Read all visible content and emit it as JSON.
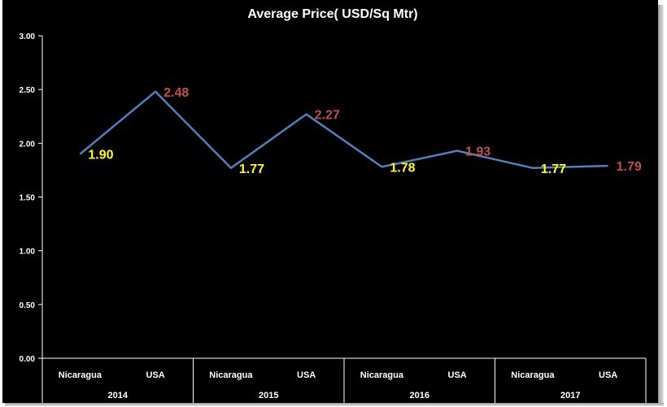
{
  "chart_data": {
    "type": "line",
    "title": "Average Price( USD/Sq Mtr)",
    "categories": [
      {
        "label": "Nicaragua",
        "year": "2014",
        "value": 1.9,
        "value_label": "1.90",
        "label_color": "#ffff00"
      },
      {
        "label": "USA",
        "year": "2014",
        "value": 2.48,
        "value_label": "2.48",
        "label_color": "#c0504d"
      },
      {
        "label": "Nicaragua",
        "year": "2015",
        "value": 1.77,
        "value_label": "1.77",
        "label_color": "#ffff00"
      },
      {
        "label": "USA",
        "year": "2015",
        "value": 2.27,
        "value_label": "2.27",
        "label_color": "#c0504d"
      },
      {
        "label": "Nicaragua",
        "year": "2016",
        "value": 1.78,
        "value_label": "1.78",
        "label_color": "#ffff00"
      },
      {
        "label": "USA",
        "year": "2016",
        "value": 1.93,
        "value_label": "1.93",
        "label_color": "#c0504d"
      },
      {
        "label": "Nicaragua",
        "year": "2017",
        "value": 1.77,
        "value_label": "1.77",
        "label_color": "#ffff00"
      },
      {
        "label": "USA",
        "year": "2017",
        "value": 1.79,
        "value_label": "1.79",
        "label_color": "#c0504d"
      }
    ],
    "years": [
      "2014",
      "2015",
      "2016",
      "2017"
    ],
    "y_ticks": [
      "0.00",
      "0.50",
      "1.00",
      "1.50",
      "2.00",
      "2.50",
      "3.00"
    ],
    "ylim": [
      0,
      3
    ],
    "grid": false,
    "legend": "none",
    "colors": {
      "background": "#000000",
      "line": "#4f81bd",
      "axis": "#ffffff",
      "text": "#ffffff",
      "nicaragua_label": "#ffff00",
      "usa_label": "#c0504d"
    }
  }
}
